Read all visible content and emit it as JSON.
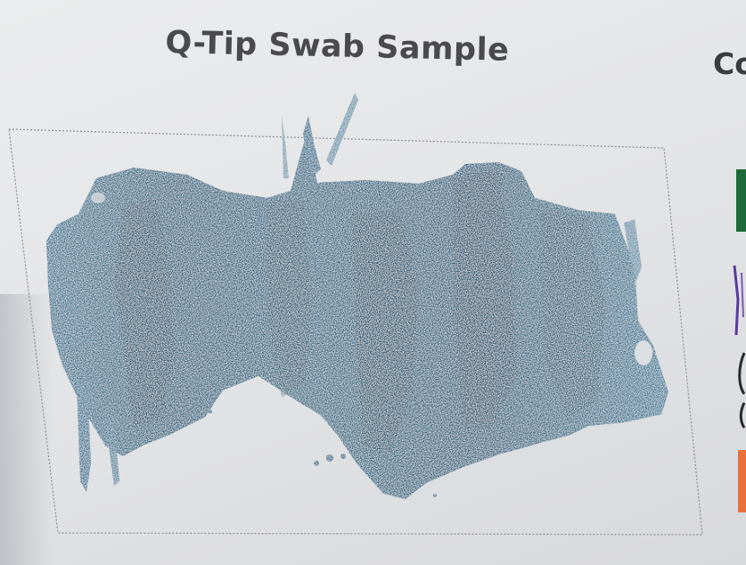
{
  "title": "Q-Tip Swab Sample",
  "right_heading": "Co",
  "colors": {
    "ink": "#2d6684",
    "ink_dark": "#1d4c68",
    "paper": "#e6e7e9",
    "text": "#4a4a4c"
  }
}
